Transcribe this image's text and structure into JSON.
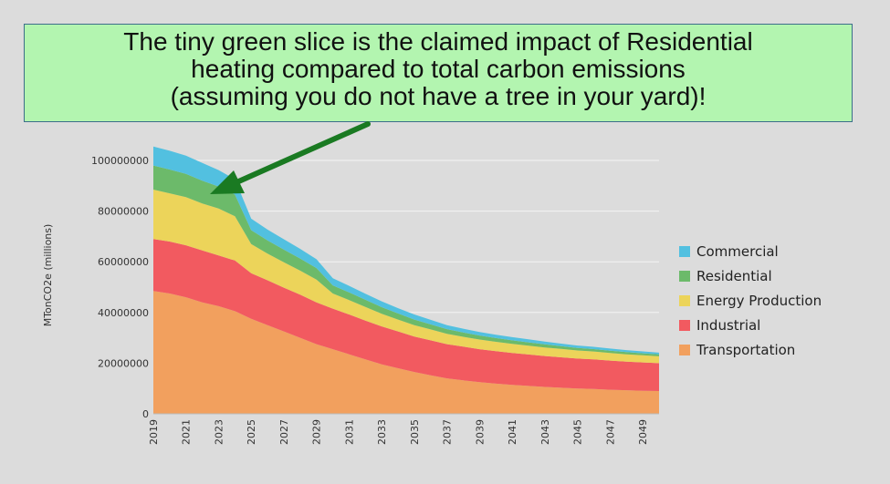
{
  "callout": {
    "line1": "The tiny green slice is the claimed impact of Residential",
    "line2": "heating compared to total carbon emissions",
    "line3": "(assuming you do not have a tree in your yard)!",
    "arrow_color": "#1a7a22"
  },
  "chart_data": {
    "type": "area",
    "stacked": true,
    "title": "",
    "xlabel": "",
    "ylabel": "MTonCO2e (millions)",
    "ylim": [
      0,
      100000000
    ],
    "y_ticks": [
      "0",
      "20000000",
      "40000000",
      "60000000",
      "80000000",
      "100000000"
    ],
    "x_tick_labels": [
      "2019",
      "2021",
      "2023",
      "2025",
      "2027",
      "2029",
      "2031",
      "2033",
      "2035",
      "2037",
      "2039",
      "2041",
      "2043",
      "2045",
      "2047",
      "2049"
    ],
    "grid": "horizontal",
    "legend_position": "right",
    "x": [
      2019,
      2020,
      2021,
      2022,
      2023,
      2024,
      2025,
      2026,
      2027,
      2028,
      2029,
      2030,
      2031,
      2032,
      2033,
      2034,
      2035,
      2036,
      2037,
      2038,
      2039,
      2040,
      2041,
      2042,
      2043,
      2044,
      2045,
      2046,
      2047,
      2048,
      2049,
      2050
    ],
    "series": [
      {
        "name": "Transportation",
        "color": "#f2a05e",
        "values": [
          48500000,
          47500000,
          46000000,
          44000000,
          42500000,
          40500000,
          37500000,
          35000000,
          32500000,
          30000000,
          27500000,
          25500000,
          23500000,
          21500000,
          19500000,
          18000000,
          16500000,
          15200000,
          14000000,
          13200000,
          12500000,
          11900000,
          11400000,
          11000000,
          10600000,
          10300000,
          10000000,
          9800000,
          9500000,
          9300000,
          9100000,
          9000000
        ]
      },
      {
        "name": "Industrial",
        "color": "#f25a60",
        "values": [
          20500000,
          20500000,
          20500000,
          20500000,
          20000000,
          20000000,
          18000000,
          17700000,
          17300000,
          17000000,
          16500000,
          16000000,
          15700000,
          15300000,
          15000000,
          14500000,
          14000000,
          13800000,
          13500000,
          13300000,
          13000000,
          12800000,
          12600000,
          12400000,
          12200000,
          12000000,
          11800000,
          11700000,
          11500000,
          11300000,
          11200000,
          11000000
        ]
      },
      {
        "name": "Energy Production",
        "color": "#ecd45a",
        "values": [
          19500000,
          19000000,
          19000000,
          18500000,
          18500000,
          17500000,
          11500000,
          10500000,
          10000000,
          9500000,
          9000000,
          6000000,
          5700000,
          5400000,
          5000000,
          4700000,
          4500000,
          4300000,
          4100000,
          3900000,
          3800000,
          3700000,
          3600000,
          3500000,
          3400000,
          3300000,
          3200000,
          3100000,
          3000000,
          2900000,
          2800000,
          2700000
        ]
      },
      {
        "name": "Residential",
        "color": "#6cba6a",
        "values": [
          9500000,
          9400000,
          9200000,
          9000000,
          8700000,
          8500000,
          5500000,
          5200000,
          5000000,
          4800000,
          4500000,
          3200000,
          3000000,
          2800000,
          2600000,
          2400000,
          2200000,
          2000000,
          1800000,
          1700000,
          1600000,
          1500000,
          1400000,
          1300000,
          1200000,
          1100000,
          1000000,
          950000,
          900000,
          850000,
          800000,
          750000
        ]
      },
      {
        "name": "Commercial",
        "color": "#52c0e0",
        "values": [
          7500000,
          7400000,
          7200000,
          7000000,
          6500000,
          6000000,
          4500000,
          4300000,
          4100000,
          3800000,
          3500000,
          2800000,
          2600000,
          2400000,
          2300000,
          2100000,
          2000000,
          1800000,
          1600000,
          1500000,
          1400000,
          1300000,
          1250000,
          1200000,
          1100000,
          1000000,
          950000,
          900000,
          850000,
          800000,
          750000,
          700000
        ]
      }
    ]
  }
}
